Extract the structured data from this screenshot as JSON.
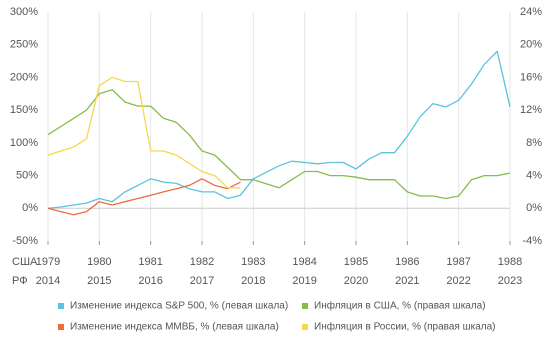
{
  "chart_data": {
    "type": "line",
    "x": [
      1979,
      1979.25,
      1979.5,
      1979.75,
      1980,
      1980.25,
      1980.5,
      1980.75,
      1981,
      1981.25,
      1981.5,
      1981.75,
      1982,
      1982.25,
      1982.5,
      1982.75,
      1983,
      1983.25,
      1983.5,
      1983.75,
      1984,
      1984.25,
      1984.5,
      1984.75,
      1985,
      1985.25,
      1985.5,
      1985.75,
      1986,
      1986.25,
      1986.5,
      1986.75,
      1987,
      1987.25,
      1987.5,
      1987.75,
      1988
    ],
    "series": [
      {
        "name": "Изменение индекса S&P 500, % (левая шкала)",
        "color": "#5bc4dc",
        "values": [
          0,
          2,
          5,
          8,
          15,
          10,
          25,
          35,
          45,
          40,
          38,
          30,
          25,
          25,
          15,
          20,
          45,
          55,
          65,
          72,
          70,
          68,
          70,
          70,
          60,
          75,
          85,
          85,
          110,
          140,
          160,
          155,
          165,
          190,
          220,
          240,
          155
        ]
      },
      {
        "name": "Изменение индекса ММВБ, % (левая шкала)",
        "color": "#f06b3c",
        "values": [
          0,
          -5,
          -10,
          -5,
          10,
          5,
          10,
          15,
          20,
          25,
          30,
          35,
          45,
          35,
          30,
          40,
          null,
          null,
          null,
          null,
          null,
          null,
          null,
          null,
          null,
          null,
          null,
          null,
          null,
          null,
          null,
          null,
          null,
          null,
          null,
          null,
          null
        ]
      },
      {
        "name": "Инфляция в США, % (правая шкала)",
        "color": "#86bc4c",
        "axis": "y2",
        "values": [
          9,
          10,
          11,
          12,
          14,
          14.5,
          13,
          12.5,
          12.5,
          11,
          10.5,
          9,
          7,
          6.5,
          5,
          3.5,
          3.5,
          3,
          2.5,
          3.5,
          4.5,
          4.5,
          4,
          4,
          3.8,
          3.5,
          3.5,
          3.5,
          2,
          1.5,
          1.5,
          1.2,
          1.5,
          3.5,
          4,
          4,
          4.3
        ]
      },
      {
        "name": "Инфляция в России, % (правая шкала)",
        "color": "#f6d84e",
        "axis": "y2",
        "values": [
          6.5,
          7,
          7.5,
          8.5,
          15,
          16,
          15.5,
          15.5,
          7,
          7,
          6.5,
          5.5,
          4.5,
          4,
          2.5,
          2.5,
          null,
          null,
          null,
          null,
          null,
          null,
          null,
          null,
          null,
          null,
          null,
          null,
          null,
          null,
          null,
          null,
          null,
          null,
          null,
          null,
          null
        ]
      }
    ],
    "xlim": [
      1979,
      1988
    ],
    "xticks": [
      1979,
      1980,
      1981,
      1982,
      1983,
      1984,
      1985,
      1986,
      1987,
      1988
    ],
    "x_row_labels": [
      "США",
      "РФ"
    ],
    "x_secondary_labels": [
      "2014",
      "2015",
      "2016",
      "2017",
      "2018",
      "2019",
      "2020",
      "2021",
      "2022",
      "2023"
    ],
    "ylim": [
      -50,
      300
    ],
    "yticks": [
      {
        "value": -50,
        "label": "-50%"
      },
      {
        "value": 0,
        "label": "0%"
      },
      {
        "value": 50,
        "label": "50%"
      },
      {
        "value": 100,
        "label": "100%"
      },
      {
        "value": 150,
        "label": "150%"
      },
      {
        "value": 200,
        "label": "200%"
      },
      {
        "value": 250,
        "label": "250%"
      },
      {
        "value": 300,
        "label": "300%"
      }
    ],
    "y2lim": [
      -4,
      24
    ],
    "y2ticks": [
      {
        "value": -4,
        "label": "-4%"
      },
      {
        "value": 0,
        "label": "0%"
      },
      {
        "value": 4,
        "label": "4%"
      },
      {
        "value": 8,
        "label": "8%"
      },
      {
        "value": 12,
        "label": "12%"
      },
      {
        "value": 16,
        "label": "16%"
      },
      {
        "value": 20,
        "label": "20%"
      },
      {
        "value": 24,
        "label": "24%"
      }
    ],
    "grid": true
  }
}
